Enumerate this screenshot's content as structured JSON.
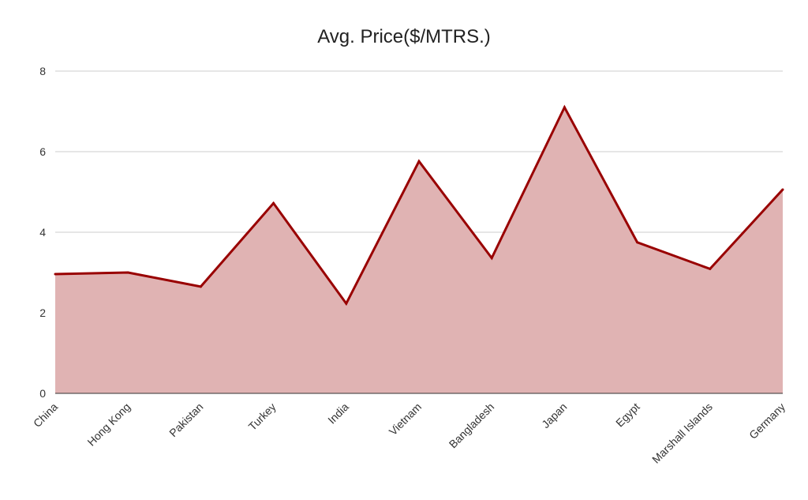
{
  "chart_data": {
    "type": "area",
    "title": "Avg. Price($/MTRS.)",
    "xlabel": "",
    "ylabel": "",
    "categories": [
      "China",
      "Hong Kong",
      "Pakistan",
      "Turkey",
      "India",
      "Vietnam",
      "Bangladesh",
      "Japan",
      "Egypt",
      "Marshall Islands",
      "Germany"
    ],
    "series": [
      {
        "values": [
          2.96,
          3.0,
          2.65,
          4.72,
          2.23,
          5.76,
          3.36,
          7.1,
          3.75,
          3.09,
          5.06
        ]
      }
    ],
    "ylim": [
      0,
      8
    ],
    "yticks": [
      "0",
      "2",
      "4",
      "6",
      "8"
    ],
    "grid": true,
    "legend": "none",
    "colors": {
      "line": "#990000",
      "fill": "#e0b3b3"
    }
  }
}
